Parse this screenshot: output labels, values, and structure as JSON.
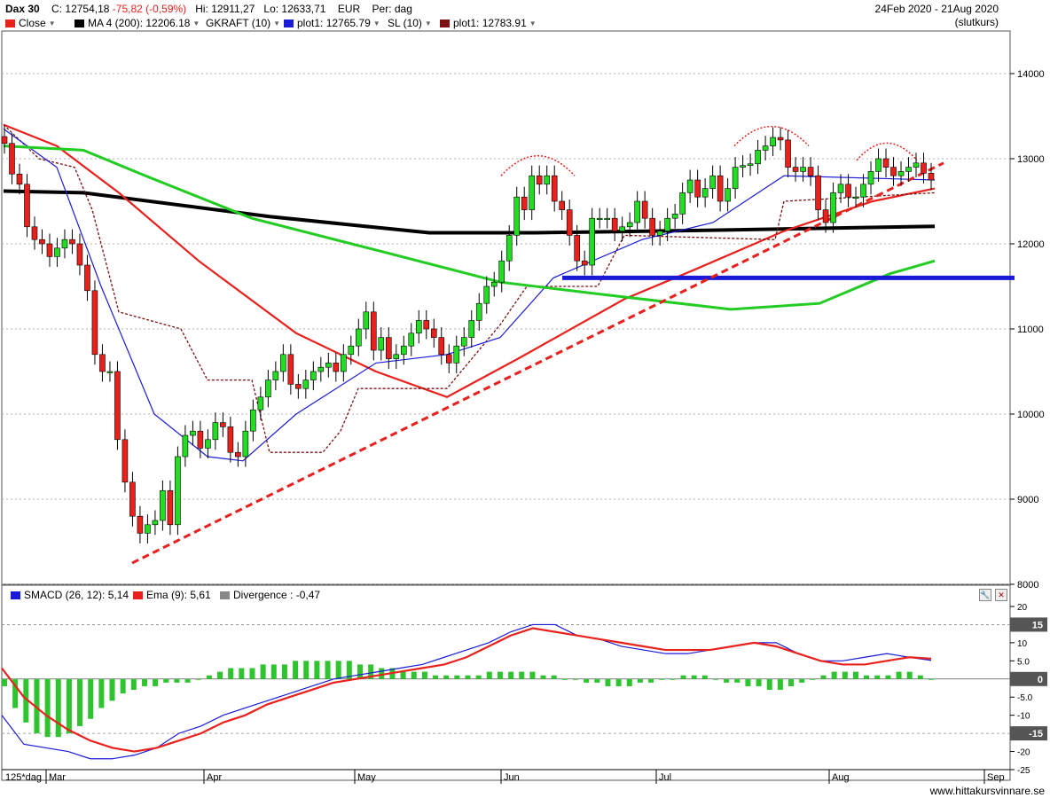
{
  "header": {
    "symbol": "Dax 30",
    "close_label": "C:",
    "close_value": "12754,18",
    "change": "-75,82 (-0,59%)",
    "hi_label": "Hi:",
    "hi_value": "12911,27",
    "lo_label": "Lo:",
    "lo_value": "12633,71",
    "currency": "EUR",
    "period_label": "Per:",
    "period_value": "dag",
    "date_range": "24Feb 2020 - 21Aug 2020",
    "price_type": "(slutkurs)"
  },
  "legend": [
    {
      "label": "Close",
      "color": "#e8211d",
      "dropdown": true
    },
    {
      "label": "MA 4 (200): 12206.18",
      "color": "#000000",
      "dropdown": true
    },
    {
      "label": "GKRAFT (10)",
      "color": null,
      "dropdown": true
    },
    {
      "label": "plot1: 12765.79",
      "color": "#1a1ad8",
      "dropdown": true
    },
    {
      "label": "SL (10)",
      "color": null,
      "dropdown": true
    },
    {
      "label": "plot1: 12783.91",
      "color": "#7a1010",
      "dropdown": true
    }
  ],
  "sub_legend": [
    {
      "label": "SMACD (26, 12): 5,14",
      "color": "#1a1ad8"
    },
    {
      "label": "Ema (9): 5,61",
      "color": "#e8211d"
    },
    {
      "label": "Divergence : -0,47",
      "color": "#888888"
    }
  ],
  "tools": {
    "wrench_icon": "wrench-icon",
    "close_icon": "close-icon"
  },
  "credit": "www.hittakursvinnare.se",
  "period_tag": "125*dag",
  "chart_data": [
    {
      "type": "candlestick",
      "ylim": [
        8000,
        14500
      ],
      "yticks": [
        "8000",
        "9000",
        "10000",
        "11000",
        "12000",
        "13000",
        "14000"
      ],
      "xticks": [
        "Mar",
        "Apr",
        "May",
        "Jun",
        "Jul",
        "Aug",
        "Sep"
      ],
      "ohlc_approx_close": [
        13180,
        12820,
        12700,
        12200,
        12050,
        12000,
        11850,
        11950,
        12050,
        12000,
        11750,
        11450,
        10700,
        10500,
        10500,
        9700,
        9200,
        8800,
        8600,
        8700,
        8750,
        9100,
        8700,
        9500,
        9750,
        9800,
        9600,
        9700,
        9900,
        9850,
        9550,
        9500,
        9800,
        10050,
        10200,
        10400,
        10500,
        10700,
        10350,
        10300,
        10400,
        10500,
        10550,
        10600,
        10500,
        10700,
        10800,
        11000,
        11200,
        10750,
        10900,
        10650,
        10700,
        10800,
        10950,
        11100,
        11000,
        10900,
        10700,
        10600,
        10800,
        10900,
        11100,
        11300,
        11500,
        11550,
        11800,
        12100,
        12550,
        12400,
        12800,
        12700,
        12800,
        12500,
        12400,
        12100,
        11800,
        11750,
        12300,
        12300,
        12300,
        12150,
        12200,
        12250,
        12500,
        12300,
        12100,
        12150,
        12300,
        12350,
        12600,
        12750,
        12550,
        12650,
        12800,
        12500,
        12650,
        12900,
        12920,
        12940,
        13100,
        13150,
        13250,
        13220,
        12900,
        12850,
        12900,
        12800,
        12400,
        12250,
        12600,
        12700,
        12550,
        12550,
        12700,
        12850,
        13000,
        12900,
        12800,
        12850,
        12900,
        12950,
        12830,
        12750
      ],
      "series": [
        {
          "name": "MA 4 (200): 12206.18",
          "color": "#000000",
          "points": [
            [
              0,
              12620
            ],
            [
              90,
              12600
            ],
            [
              300,
              12320
            ],
            [
              480,
              12130
            ],
            [
              600,
              12130
            ],
            [
              800,
              12160
            ],
            [
              1050,
              12206
            ]
          ]
        },
        {
          "name": "Close",
          "color": "#e8211d",
          "points": [
            [
              0,
              13400
            ],
            [
              60,
              13150
            ],
            [
              130,
              12600
            ],
            [
              220,
              11800
            ],
            [
              330,
              10950
            ],
            [
              420,
              10500
            ],
            [
              500,
              10200
            ],
            [
              580,
              10650
            ],
            [
              700,
              11350
            ],
            [
              780,
              11700
            ],
            [
              880,
              12150
            ],
            [
              980,
              12500
            ],
            [
              1050,
              12650
            ]
          ]
        },
        {
          "name": "SL (10)",
          "color": "#7a1010",
          "points": [
            [
              0,
              13400
            ],
            [
              40,
              13000
            ],
            [
              80,
              12900
            ],
            [
              100,
              12400
            ],
            [
              130,
              11200
            ],
            [
              200,
              11000
            ],
            [
              230,
              10400
            ],
            [
              280,
              10400
            ],
            [
              300,
              9550
            ],
            [
              360,
              9550
            ],
            [
              380,
              9800
            ],
            [
              400,
              10300
            ],
            [
              500,
              10300
            ],
            [
              560,
              11050
            ],
            [
              590,
              11500
            ],
            [
              670,
              11500
            ],
            [
              700,
              12100
            ],
            [
              870,
              12050
            ],
            [
              880,
              12500
            ],
            [
              1050,
              12600
            ]
          ]
        },
        {
          "name": "plot1: 12765.79",
          "color": "#1a1ad8",
          "points": [
            [
              0,
              13350
            ],
            [
              60,
              12900
            ],
            [
              110,
              11500
            ],
            [
              170,
              10000
            ],
            [
              230,
              9500
            ],
            [
              270,
              9450
            ],
            [
              330,
              10000
            ],
            [
              420,
              10600
            ],
            [
              500,
              10700
            ],
            [
              560,
              10900
            ],
            [
              620,
              11600
            ],
            [
              720,
              12050
            ],
            [
              800,
              12250
            ],
            [
              880,
              12800
            ],
            [
              1050,
              12750
            ]
          ]
        },
        {
          "name": "MA",
          "color": "#22cc22",
          "points": [
            [
              0,
              13150
            ],
            [
              90,
              13100
            ],
            [
              160,
              12800
            ],
            [
              280,
              12300
            ],
            [
              430,
              11900
            ],
            [
              560,
              11550
            ],
            [
              680,
              11400
            ],
            [
              820,
              11230
            ],
            [
              920,
              11300
            ],
            [
              1000,
              11650
            ],
            [
              1050,
              11800
            ]
          ]
        },
        {
          "name": "support",
          "color": "#1a1ad8",
          "points": [
            [
              630,
              11600
            ],
            [
              1140,
              11600
            ]
          ]
        },
        {
          "name": "trend",
          "color": "#e8211d",
          "points": [
            [
              145,
              8250
            ],
            [
              1060,
              12950
            ]
          ]
        }
      ]
    },
    {
      "type": "bar",
      "ylim": [
        -25,
        20
      ],
      "yticks": [
        "20",
        "15",
        "10",
        "5.0",
        "0",
        "-5.0",
        "-10",
        "-15",
        "-20",
        "-25"
      ],
      "highlight_ticks": [
        "15",
        "0",
        "-15"
      ],
      "xticks": [
        "Mar",
        "Apr",
        "May",
        "Jun",
        "Jul",
        "Aug",
        "Sep"
      ],
      "divergence": [
        -2,
        -8,
        -12,
        -15,
        -16,
        -16,
        -15,
        -13,
        -11,
        -8,
        -6,
        -4,
        -3,
        -2,
        -2,
        -1,
        -1,
        -1,
        0,
        1,
        2,
        3,
        3,
        3,
        4,
        4,
        4,
        5,
        5,
        5,
        5,
        5,
        5,
        4,
        4,
        3,
        3,
        2,
        2,
        2,
        1,
        1,
        1,
        1,
        1,
        2,
        2,
        2,
        2,
        2,
        1,
        1,
        0,
        0,
        -1,
        -1,
        -2,
        -2,
        -2,
        -1,
        -1,
        0,
        0,
        1,
        1,
        1,
        0,
        -1,
        -1,
        -2,
        -2,
        -3,
        -3,
        -2,
        -1,
        0,
        1,
        2,
        2,
        2,
        1,
        1,
        1,
        2,
        2,
        1,
        0
      ],
      "series": [
        {
          "name": "SMACD (26, 12): 5,14",
          "color": "#1a1ad8",
          "values": [
            -10,
            -18,
            -19,
            -20,
            -22,
            -22,
            -21,
            -19,
            -15,
            -13,
            -10,
            -8,
            -6,
            -4,
            -2,
            0,
            1,
            2,
            3,
            4,
            6,
            8,
            10,
            13,
            15,
            15,
            12,
            11,
            9,
            8,
            7,
            7,
            8,
            9,
            10,
            10,
            7,
            5,
            5,
            6,
            7,
            6,
            5.14
          ]
        },
        {
          "name": "Ema (9): 5,61",
          "color": "#e8211d",
          "values": [
            3,
            -5,
            -10,
            -14,
            -17,
            -19,
            -20,
            -19,
            -17,
            -15,
            -12,
            -10,
            -7,
            -5,
            -3,
            -1,
            0,
            1,
            2,
            3,
            4,
            6,
            9,
            12,
            14,
            13,
            12,
            11,
            10,
            9,
            8,
            8,
            8,
            9,
            10,
            9,
            7,
            5,
            4,
            4,
            5,
            6,
            5.61
          ]
        }
      ]
    }
  ]
}
